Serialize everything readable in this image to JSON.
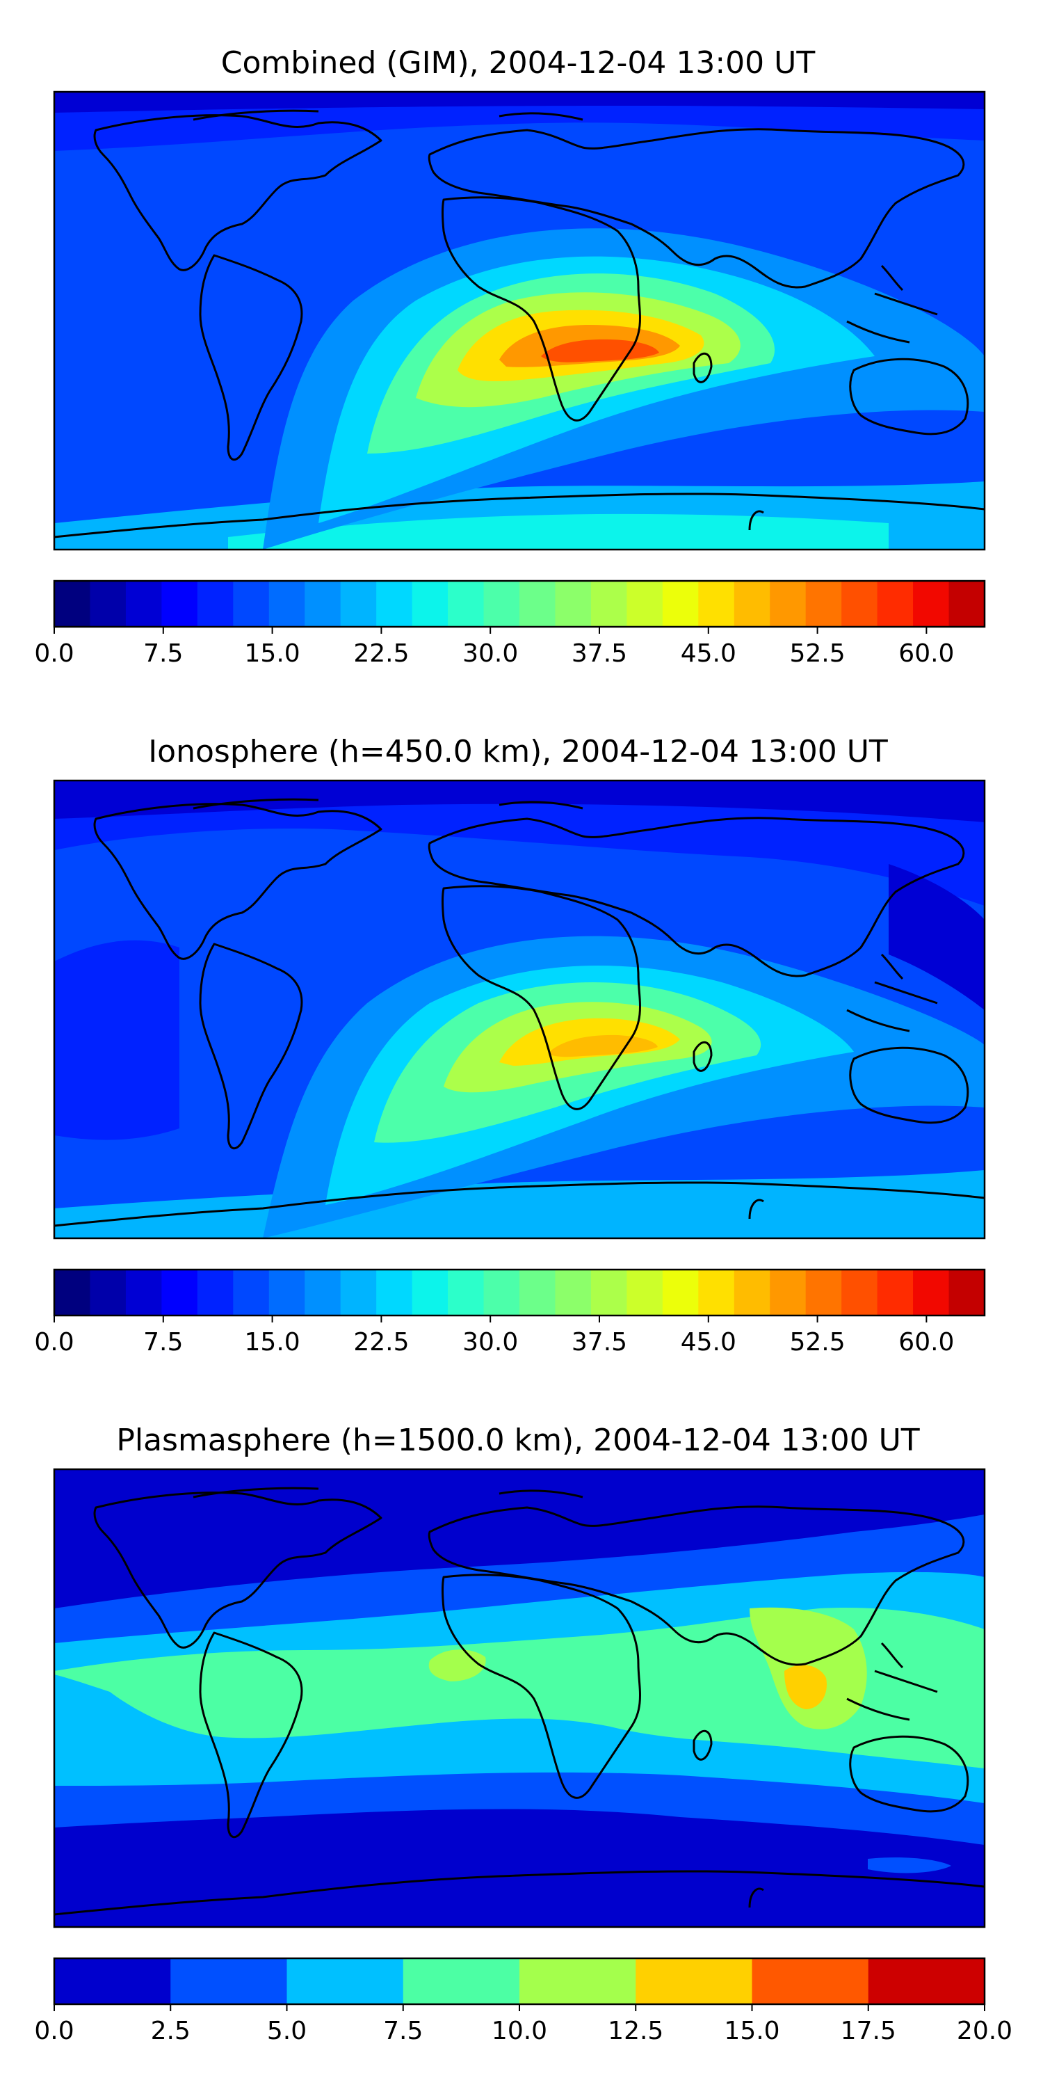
{
  "panels": [
    {
      "title": "Combined (GIM), 2004-12-04 13:00 UT",
      "colorbar": {
        "min": 0,
        "max": 64,
        "step": 2.5,
        "ticks": [
          "0.0",
          "7.5",
          "15.0",
          "22.5",
          "30.0",
          "37.5",
          "45.0",
          "52.5",
          "60.0"
        ],
        "tick_values": [
          0,
          7.5,
          15,
          22.5,
          30,
          37.5,
          45,
          52.5,
          60
        ]
      }
    },
    {
      "title": "Ionosphere  (h=450.0 km), 2004-12-04 13:00 UT",
      "colorbar": {
        "min": 0,
        "max": 64,
        "step": 2.5,
        "ticks": [
          "0.0",
          "7.5",
          "15.0",
          "22.5",
          "30.0",
          "37.5",
          "45.0",
          "52.5",
          "60.0"
        ],
        "tick_values": [
          0,
          7.5,
          15,
          22.5,
          30,
          37.5,
          45,
          52.5,
          60
        ]
      }
    },
    {
      "title": "Plasmasphere (h=1500.0 km), 2004-12-04 13:00 UT",
      "colorbar": {
        "min": 0,
        "max": 20,
        "step": 2.5,
        "ticks": [
          "0.0",
          "2.5",
          "5.0",
          "7.5",
          "10.0",
          "12.5",
          "15.0",
          "17.5",
          "20.0"
        ],
        "tick_values": [
          0,
          2.5,
          5,
          7.5,
          10,
          12.5,
          15,
          17.5,
          20
        ]
      }
    }
  ],
  "colormaps": {
    "jet26": [
      "#00007f",
      "#0000aa",
      "#0000d4",
      "#0000ff",
      "#0022ff",
      "#0048ff",
      "#006cff",
      "#0090ff",
      "#00b4ff",
      "#00d8ff",
      "#0cf4eb",
      "#2cffca",
      "#4cffaa",
      "#6cff8a",
      "#8cff6a",
      "#acff4a",
      "#ccff2a",
      "#ecff0a",
      "#ffe000",
      "#ffbc00",
      "#ff9800",
      "#ff7400",
      "#ff5000",
      "#ff2c00",
      "#f20800",
      "#c40000"
    ],
    "jet8": [
      "#0000cd",
      "#0050ff",
      "#00c0ff",
      "#4cffa4",
      "#a4ff4c",
      "#ffd000",
      "#ff5800",
      "#cd0000"
    ]
  }
}
